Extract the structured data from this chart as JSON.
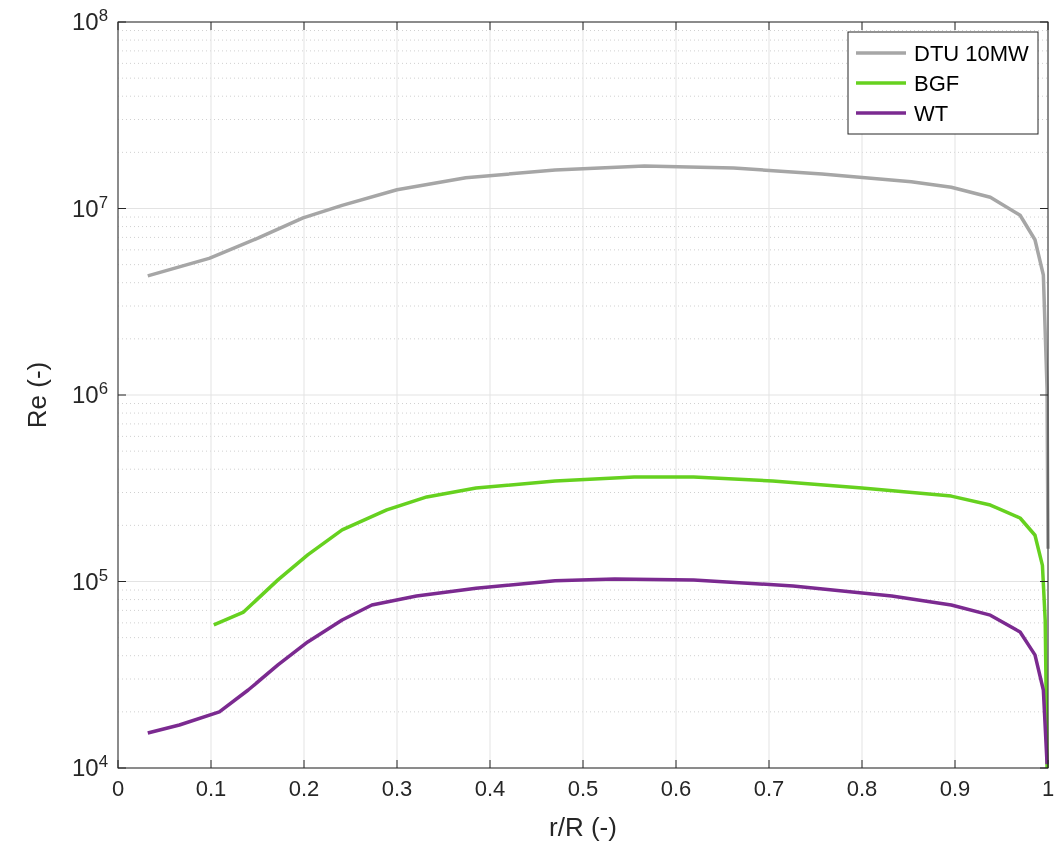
{
  "chart_data": {
    "type": "line",
    "xlabel": "r/R (-)",
    "ylabel": "Re (-)",
    "log": "y",
    "grid": true,
    "legend": "top right",
    "line_style": "solid",
    "marker": "none",
    "xlim": [
      0,
      1
    ],
    "xticks": [
      0,
      0.1,
      0.2,
      0.3,
      0.4,
      0.5,
      0.6,
      0.7,
      0.8,
      0.9,
      1
    ],
    "ylim": [
      10000,
      100000000
    ],
    "yticks": [
      {
        "value": 10000,
        "label": "10$^{4}$"
      },
      {
        "value": 100000,
        "label": "10$^{5}$"
      },
      {
        "value": 1000000,
        "label": "10$^{6}$"
      },
      {
        "value": 10000000,
        "label": "10$^{7}$"
      },
      {
        "value": 100000000,
        "label": "10$^{8}$"
      }
    ],
    "series": [
      {
        "name": "DTU 10MW",
        "color": "#a6a6a6",
        "x": [
          0.032,
          0.098,
          0.151,
          0.199,
          0.241,
          0.3,
          0.374,
          0.47,
          0.566,
          0.662,
          0.757,
          0.853,
          0.896,
          0.938,
          0.97,
          0.986,
          0.995,
          0.999,
          1.0
        ],
        "values": [
          4350000,
          5400000,
          6950000,
          8900000,
          10400000,
          12600000,
          14600000,
          16100000,
          16900000,
          16500000,
          15300000,
          13900000,
          13000000,
          11500000,
          9200000,
          6800000,
          4400000,
          1070000,
          150000
        ]
      },
      {
        "name": "BGF",
        "color": "#66d11f",
        "x": [
          0.103,
          0.135,
          0.172,
          0.204,
          0.241,
          0.289,
          0.332,
          0.385,
          0.47,
          0.555,
          0.619,
          0.704,
          0.8,
          0.896,
          0.938,
          0.97,
          0.986,
          0.994,
          0.997,
          0.999
        ],
        "values": [
          58500,
          68600,
          102000,
          139000,
          189000,
          242000,
          284000,
          317000,
          346000,
          363000,
          363000,
          346000,
          317000,
          287000,
          257000,
          219000,
          177000,
          122000,
          62000,
          10000
        ]
      },
      {
        "name": "WT",
        "color": "#7b2a90",
        "x": [
          0.032,
          0.066,
          0.109,
          0.14,
          0.172,
          0.204,
          0.241,
          0.273,
          0.321,
          0.385,
          0.47,
          0.534,
          0.619,
          0.726,
          0.832,
          0.896,
          0.938,
          0.97,
          0.986,
          0.995,
          0.999
        ],
        "values": [
          15400,
          17000,
          20000,
          26200,
          35700,
          47400,
          62200,
          74800,
          83600,
          92000,
          101000,
          103000,
          102000,
          94600,
          83600,
          74800,
          66000,
          53600,
          40400,
          26200,
          10500
        ]
      }
    ]
  }
}
